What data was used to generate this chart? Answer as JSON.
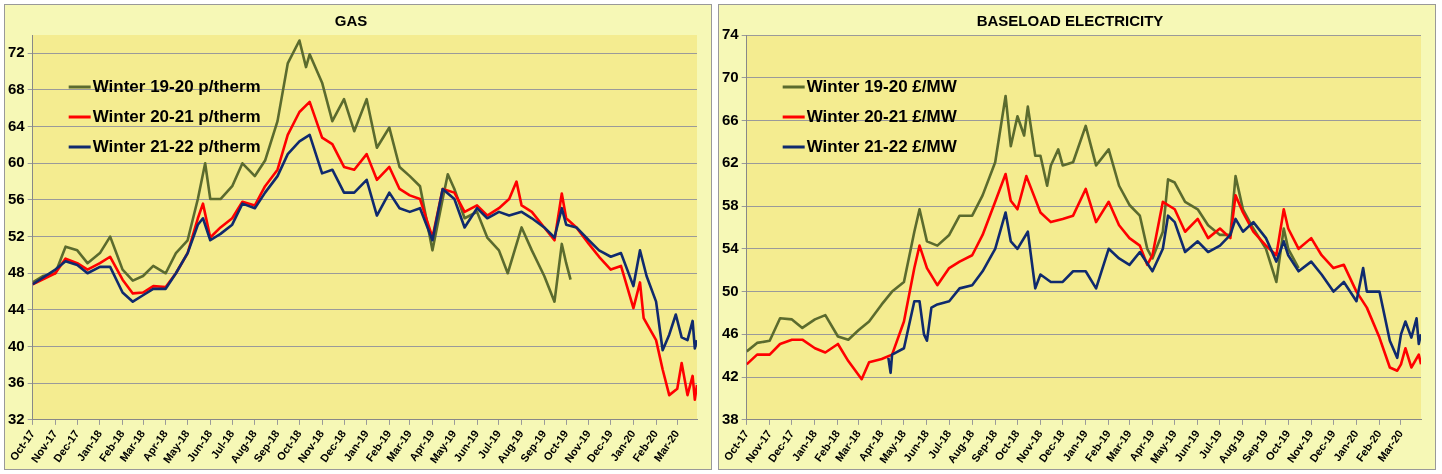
{
  "chart_data": [
    {
      "type": "line",
      "title": "GAS",
      "grid": "y",
      "legend": "top left",
      "marker": "none",
      "xlim": [
        "2017-10-01",
        "2020-03-28"
      ],
      "xticks": [
        {
          "value": "2017-10-01",
          "label": "Oct-17"
        },
        {
          "value": "2017-11-01",
          "label": "Nov-17"
        },
        {
          "value": "2017-12-01",
          "label": "Dec-17"
        },
        {
          "value": "2018-01-01",
          "label": "Jan-18"
        },
        {
          "value": "2018-02-01",
          "label": "Feb-18"
        },
        {
          "value": "2018-03-01",
          "label": "Mar-18"
        },
        {
          "value": "2018-04-01",
          "label": "Apr-18"
        },
        {
          "value": "2018-05-01",
          "label": "May-18"
        },
        {
          "value": "2018-06-01",
          "label": "Jun-18"
        },
        {
          "value": "2018-07-01",
          "label": "Jul-18"
        },
        {
          "value": "2018-08-01",
          "label": "Aug-18"
        },
        {
          "value": "2018-09-01",
          "label": "Sep-18"
        },
        {
          "value": "2018-10-01",
          "label": "Oct-18"
        },
        {
          "value": "2018-11-01",
          "label": "Nov-18"
        },
        {
          "value": "2018-12-01",
          "label": "Dec-18"
        },
        {
          "value": "2019-01-01",
          "label": "Jan-19"
        },
        {
          "value": "2019-02-01",
          "label": "Feb-19"
        },
        {
          "value": "2019-03-01",
          "label": "Mar-19"
        },
        {
          "value": "2019-04-01",
          "label": "Apr-19"
        },
        {
          "value": "2019-05-01",
          "label": "May-19"
        },
        {
          "value": "2019-06-01",
          "label": "Jun-19"
        },
        {
          "value": "2019-07-01",
          "label": "Jul-19"
        },
        {
          "value": "2019-08-01",
          "label": "Aug-19"
        },
        {
          "value": "2019-09-01",
          "label": "Sep-19"
        },
        {
          "value": "2019-10-01",
          "label": "Oct-19"
        },
        {
          "value": "2019-11-01",
          "label": "Nov-19"
        },
        {
          "value": "2019-12-01",
          "label": "Dec-19"
        },
        {
          "value": "2020-01-01",
          "label": "Jan-20"
        },
        {
          "value": "2020-02-01",
          "label": "Feb-20"
        },
        {
          "value": "2020-03-01",
          "label": "Mar-20"
        }
      ],
      "ylim": [
        32,
        74
      ],
      "yticks": [
        32,
        36,
        40,
        44,
        48,
        52,
        56,
        60,
        64,
        68,
        72
      ],
      "series": [
        {
          "name": "Winter 19-20 p/therm",
          "color": "#5b6b2e",
          "x": [
            "2017-10-01",
            "2017-10-15",
            "2017-11-01",
            "2017-11-15",
            "2017-12-01",
            "2017-12-15",
            "2018-01-01",
            "2018-01-15",
            "2018-02-01",
            "2018-02-15",
            "2018-03-01",
            "2018-03-15",
            "2018-04-01",
            "2018-04-15",
            "2018-05-01",
            "2018-05-15",
            "2018-05-25",
            "2018-06-01",
            "2018-06-15",
            "2018-07-01",
            "2018-07-15",
            "2018-08-01",
            "2018-08-15",
            "2018-09-01",
            "2018-09-15",
            "2018-10-01",
            "2018-10-10",
            "2018-10-15",
            "2018-11-01",
            "2018-11-15",
            "2018-12-01",
            "2018-12-15",
            "2019-01-01",
            "2019-01-15",
            "2019-02-01",
            "2019-02-15",
            "2019-03-01",
            "2019-03-15",
            "2019-04-01",
            "2019-04-15",
            "2019-04-22",
            "2019-05-01",
            "2019-05-15",
            "2019-06-01",
            "2019-06-15",
            "2019-07-01",
            "2019-07-13",
            "2019-08-01",
            "2019-08-15",
            "2019-09-01",
            "2019-09-15",
            "2019-09-25",
            "2019-10-01",
            "2019-10-07"
          ],
          "values": [
            47.0,
            47.7,
            48.0,
            50.9,
            50.5,
            49.1,
            50.2,
            52.0,
            48.4,
            47.2,
            47.7,
            48.8,
            48.0,
            50.2,
            51.6,
            56.1,
            60.0,
            56.1,
            56.1,
            57.5,
            60.0,
            58.6,
            60.3,
            64.6,
            70.9,
            73.4,
            70.5,
            71.9,
            68.8,
            64.6,
            67.0,
            63.5,
            67.0,
            61.7,
            63.9,
            59.6,
            58.6,
            57.5,
            50.5,
            56.1,
            58.8,
            57.2,
            54.0,
            54.7,
            51.9,
            50.5,
            48.0,
            53.0,
            50.5,
            47.7,
            44.9,
            51.2,
            49.1,
            47.3
          ]
        },
        {
          "name": "Winter 20-21 p/therm",
          "color": "#ff0000",
          "x": [
            "2017-10-01",
            "2017-11-01",
            "2017-11-15",
            "2017-12-01",
            "2017-12-15",
            "2018-01-01",
            "2018-01-15",
            "2018-02-01",
            "2018-02-15",
            "2018-03-01",
            "2018-03-15",
            "2018-04-01",
            "2018-04-15",
            "2018-05-01",
            "2018-05-15",
            "2018-05-22",
            "2018-06-01",
            "2018-06-15",
            "2018-07-01",
            "2018-07-15",
            "2018-08-01",
            "2018-08-15",
            "2018-09-01",
            "2018-09-15",
            "2018-10-01",
            "2018-10-15",
            "2018-11-01",
            "2018-11-15",
            "2018-12-01",
            "2018-12-15",
            "2019-01-01",
            "2019-01-15",
            "2019-02-01",
            "2019-02-15",
            "2019-03-01",
            "2019-03-15",
            "2019-04-01",
            "2019-04-15",
            "2019-05-01",
            "2019-05-15",
            "2019-06-01",
            "2019-06-15",
            "2019-07-01",
            "2019-07-15",
            "2019-07-25",
            "2019-08-01",
            "2019-08-15",
            "2019-09-01",
            "2019-09-15",
            "2019-09-25",
            "2019-10-01",
            "2019-10-15",
            "2019-11-01",
            "2019-11-15",
            "2019-12-01",
            "2019-12-15",
            "2020-01-01",
            "2020-01-10",
            "2020-01-15",
            "2020-02-01",
            "2020-02-10",
            "2020-02-19",
            "2020-03-01",
            "2020-03-07",
            "2020-03-15",
            "2020-03-22",
            "2020-03-25",
            "2020-03-28"
          ],
          "values": [
            46.8,
            48.0,
            49.6,
            49.1,
            48.4,
            49.1,
            49.8,
            47.3,
            45.8,
            45.9,
            46.6,
            46.5,
            48.0,
            50.2,
            54.0,
            55.6,
            51.9,
            53.0,
            54.0,
            55.8,
            55.4,
            57.5,
            59.3,
            63.1,
            65.6,
            66.7,
            62.8,
            62.1,
            59.6,
            59.3,
            61.0,
            58.2,
            59.6,
            57.2,
            56.5,
            56.1,
            51.9,
            57.2,
            56.8,
            54.7,
            55.4,
            54.3,
            55.1,
            56.1,
            58.0,
            55.4,
            54.7,
            53.0,
            51.6,
            56.7,
            54.0,
            53.0,
            51.2,
            49.8,
            48.4,
            48.8,
            44.2,
            47.0,
            43.1,
            40.7,
            37.5,
            34.7,
            35.4,
            38.2,
            34.7,
            36.8,
            34.2,
            35.8
          ]
        },
        {
          "name": "Winter 21-22 p/therm",
          "color": "#0f2a6e",
          "x": [
            "2017-10-01",
            "2017-11-01",
            "2017-11-15",
            "2017-12-01",
            "2017-12-15",
            "2018-01-01",
            "2018-01-15",
            "2018-02-01",
            "2018-02-15",
            "2018-03-01",
            "2018-03-15",
            "2018-04-01",
            "2018-04-15",
            "2018-05-01",
            "2018-05-15",
            "2018-05-22",
            "2018-06-01",
            "2018-06-15",
            "2018-07-01",
            "2018-07-15",
            "2018-08-01",
            "2018-08-15",
            "2018-09-01",
            "2018-09-15",
            "2018-10-01",
            "2018-10-15",
            "2018-11-01",
            "2018-11-15",
            "2018-12-01",
            "2018-12-15",
            "2019-01-01",
            "2019-01-15",
            "2019-02-01",
            "2019-02-15",
            "2019-03-01",
            "2019-03-15",
            "2019-04-01",
            "2019-04-15",
            "2019-05-01",
            "2019-05-15",
            "2019-06-01",
            "2019-06-15",
            "2019-07-01",
            "2019-07-15",
            "2019-08-01",
            "2019-08-15",
            "2019-09-01",
            "2019-09-15",
            "2019-09-25",
            "2019-10-01",
            "2019-10-15",
            "2019-11-01",
            "2019-11-15",
            "2019-12-01",
            "2019-12-15",
            "2020-01-01",
            "2020-01-10",
            "2020-01-19",
            "2020-02-01",
            "2020-02-10",
            "2020-02-19",
            "2020-02-28",
            "2020-03-07",
            "2020-03-15",
            "2020-03-22",
            "2020-03-25",
            "2020-03-28"
          ],
          "values": [
            46.8,
            48.4,
            49.3,
            48.9,
            48.0,
            48.7,
            48.7,
            45.9,
            44.9,
            45.6,
            46.3,
            46.3,
            48.0,
            50.2,
            53.3,
            54.0,
            51.6,
            52.3,
            53.3,
            55.6,
            55.1,
            56.8,
            58.6,
            61.0,
            62.4,
            63.1,
            58.9,
            59.3,
            56.8,
            56.8,
            58.2,
            54.3,
            56.8,
            55.1,
            54.7,
            55.1,
            51.6,
            57.2,
            56.1,
            53.0,
            55.1,
            54.0,
            54.7,
            54.3,
            54.7,
            54.0,
            53.0,
            51.9,
            55.1,
            53.3,
            53.0,
            51.6,
            50.5,
            49.8,
            50.2,
            46.6,
            50.5,
            47.7,
            44.9,
            39.6,
            41.3,
            43.5,
            41.0,
            40.7,
            42.8,
            39.8,
            40.7
          ]
        }
      ]
    },
    {
      "type": "line",
      "title": "BASELOAD ELECTRICITY",
      "grid": "y",
      "legend": "top left",
      "marker": "none",
      "xlim": [
        "2017-10-01",
        "2020-03-28"
      ],
      "xticks": [
        {
          "value": "2017-10-01",
          "label": "Oct-17"
        },
        {
          "value": "2017-11-01",
          "label": "Nov-17"
        },
        {
          "value": "2017-12-01",
          "label": "Dec-17"
        },
        {
          "value": "2018-01-01",
          "label": "Jan-18"
        },
        {
          "value": "2018-02-01",
          "label": "Feb-18"
        },
        {
          "value": "2018-03-01",
          "label": "Mar-18"
        },
        {
          "value": "2018-04-01",
          "label": "Apr-18"
        },
        {
          "value": "2018-05-01",
          "label": "May-18"
        },
        {
          "value": "2018-06-01",
          "label": "Jun-18"
        },
        {
          "value": "2018-07-01",
          "label": "Jul-18"
        },
        {
          "value": "2018-08-01",
          "label": "Aug-18"
        },
        {
          "value": "2018-09-01",
          "label": "Sep-18"
        },
        {
          "value": "2018-10-01",
          "label": "Oct-18"
        },
        {
          "value": "2018-11-01",
          "label": "Nov-18"
        },
        {
          "value": "2018-12-01",
          "label": "Dec-18"
        },
        {
          "value": "2019-01-01",
          "label": "Jan-19"
        },
        {
          "value": "2019-02-01",
          "label": "Feb-19"
        },
        {
          "value": "2019-03-01",
          "label": "Mar-19"
        },
        {
          "value": "2019-04-01",
          "label": "Apr-19"
        },
        {
          "value": "2019-05-01",
          "label": "May-19"
        },
        {
          "value": "2019-06-01",
          "label": "Jun-19"
        },
        {
          "value": "2019-07-01",
          "label": "Jul-19"
        },
        {
          "value": "2019-08-01",
          "label": "Aug-19"
        },
        {
          "value": "2019-09-01",
          "label": "Sep-19"
        },
        {
          "value": "2019-10-01",
          "label": "Oct-19"
        },
        {
          "value": "2019-11-01",
          "label": "Nov-19"
        },
        {
          "value": "2019-12-01",
          "label": "Dec-19"
        },
        {
          "value": "2020-01-01",
          "label": "Jan-20"
        },
        {
          "value": "2020-02-01",
          "label": "Feb-20"
        },
        {
          "value": "2020-03-01",
          "label": "Mar-20"
        }
      ],
      "ylim": [
        38,
        74
      ],
      "yticks": [
        38,
        42,
        46,
        50,
        54,
        58,
        62,
        66,
        70,
        74
      ],
      "series": [
        {
          "name": "Winter 19-20 £/MW",
          "color": "#5b6b2e",
          "x": [
            "2017-10-01",
            "2017-10-15",
            "2017-11-01",
            "2017-11-15",
            "2017-12-01",
            "2017-12-15",
            "2018-01-01",
            "2018-01-15",
            "2018-02-01",
            "2018-02-15",
            "2018-03-01",
            "2018-03-15",
            "2018-04-01",
            "2018-04-15",
            "2018-05-01",
            "2018-05-15",
            "2018-05-22",
            "2018-06-01",
            "2018-06-15",
            "2018-07-01",
            "2018-07-15",
            "2018-08-01",
            "2018-08-15",
            "2018-09-01",
            "2018-09-15",
            "2018-09-22",
            "2018-10-01",
            "2018-10-10",
            "2018-10-15",
            "2018-10-25",
            "2018-11-01",
            "2018-11-10",
            "2018-11-15",
            "2018-11-25",
            "2018-12-01",
            "2018-12-15",
            "2019-01-01",
            "2019-01-15",
            "2019-02-01",
            "2019-02-15",
            "2019-03-01",
            "2019-03-15",
            "2019-03-25",
            "2019-04-01",
            "2019-04-15",
            "2019-04-22",
            "2019-05-01",
            "2019-05-15",
            "2019-06-01",
            "2019-06-15",
            "2019-07-01",
            "2019-07-15",
            "2019-07-22",
            "2019-08-01",
            "2019-08-15",
            "2019-09-01",
            "2019-09-15",
            "2019-09-25",
            "2019-10-01",
            "2019-10-15"
          ],
          "values": [
            44.4,
            45.2,
            45.4,
            47.5,
            47.4,
            46.6,
            47.4,
            47.8,
            45.8,
            45.5,
            46.4,
            47.2,
            48.8,
            50.0,
            50.9,
            55.6,
            57.7,
            54.7,
            54.3,
            55.3,
            57.1,
            57.1,
            59.0,
            62.1,
            68.3,
            63.6,
            66.4,
            64.6,
            67.3,
            62.7,
            62.7,
            59.9,
            61.8,
            63.3,
            61.8,
            62.1,
            65.5,
            61.8,
            63.3,
            59.9,
            58.1,
            57.1,
            54.0,
            53.1,
            55.6,
            60.5,
            60.2,
            58.4,
            57.7,
            56.2,
            55.3,
            55.3,
            60.8,
            57.7,
            55.9,
            54.0,
            50.9,
            55.9,
            54.0,
            52.2
          ]
        },
        {
          "name": "Winter 20-21 £/MW",
          "color": "#ff0000",
          "x": [
            "2017-10-01",
            "2017-10-15",
            "2017-11-01",
            "2017-11-15",
            "2017-12-01",
            "2017-12-15",
            "2018-01-01",
            "2018-01-15",
            "2018-02-01",
            "2018-02-15",
            "2018-03-05",
            "2018-03-15",
            "2018-04-01",
            "2018-04-15",
            "2018-05-01",
            "2018-05-15",
            "2018-05-22",
            "2018-06-01",
            "2018-06-15",
            "2018-07-01",
            "2018-07-15",
            "2018-08-01",
            "2018-08-15",
            "2018-09-01",
            "2018-09-15",
            "2018-09-22",
            "2018-10-01",
            "2018-10-13",
            "2018-11-01",
            "2018-11-15",
            "2018-12-01",
            "2018-12-15",
            "2019-01-01",
            "2019-01-15",
            "2019-02-01",
            "2019-02-15",
            "2019-03-01",
            "2019-03-15",
            "2019-03-25",
            "2019-04-01",
            "2019-04-15",
            "2019-05-01",
            "2019-05-15",
            "2019-06-01",
            "2019-06-15",
            "2019-07-01",
            "2019-07-15",
            "2019-07-22",
            "2019-08-01",
            "2019-08-15",
            "2019-09-01",
            "2019-09-15",
            "2019-09-25",
            "2019-10-01",
            "2019-10-15",
            "2019-11-01",
            "2019-11-15",
            "2019-12-01",
            "2019-12-15",
            "2020-01-01",
            "2020-01-15",
            "2020-02-01",
            "2020-02-15",
            "2020-02-25",
            "2020-03-01",
            "2020-03-07",
            "2020-03-15",
            "2020-03-25",
            "2020-03-28"
          ],
          "values": [
            43.2,
            44.1,
            44.1,
            45.1,
            45.5,
            45.5,
            44.7,
            44.3,
            45.1,
            43.5,
            41.8,
            43.4,
            43.7,
            44.1,
            47.2,
            52.2,
            54.3,
            52.2,
            50.6,
            52.2,
            52.8,
            53.4,
            55.3,
            58.4,
            61.0,
            58.5,
            57.7,
            60.8,
            57.4,
            56.5,
            56.8,
            57.1,
            59.6,
            56.5,
            58.4,
            56.2,
            55.0,
            54.3,
            52.5,
            53.4,
            58.4,
            57.7,
            55.6,
            56.8,
            55.0,
            55.9,
            55.0,
            59.0,
            57.4,
            55.6,
            54.3,
            53.4,
            57.7,
            55.9,
            54.0,
            55.0,
            53.4,
            52.2,
            52.5,
            50.0,
            48.5,
            45.7,
            42.9,
            42.6,
            43.2,
            44.7,
            42.9,
            44.1,
            43.2
          ]
        },
        {
          "name": "Winter 21-22 £/MW",
          "color": "#0f2a6e",
          "x": [
            "2018-04-10",
            "2018-04-13",
            "2018-04-15",
            "2018-05-01",
            "2018-05-15",
            "2018-05-22",
            "2018-05-28",
            "2018-06-01",
            "2018-06-07",
            "2018-06-15",
            "2018-07-01",
            "2018-07-15",
            "2018-08-01",
            "2018-08-15",
            "2018-09-01",
            "2018-09-15",
            "2018-09-22",
            "2018-10-01",
            "2018-10-15",
            "2018-10-25",
            "2018-11-01",
            "2018-11-15",
            "2018-12-01",
            "2018-12-15",
            "2019-01-01",
            "2019-01-15",
            "2019-02-01",
            "2019-02-15",
            "2019-03-01",
            "2019-03-15",
            "2019-04-01",
            "2019-04-15",
            "2019-04-22",
            "2019-05-01",
            "2019-05-15",
            "2019-06-01",
            "2019-06-15",
            "2019-07-01",
            "2019-07-15",
            "2019-07-22",
            "2019-08-01",
            "2019-08-15",
            "2019-09-01",
            "2019-09-15",
            "2019-09-25",
            "2019-10-01",
            "2019-10-15",
            "2019-11-01",
            "2019-11-15",
            "2019-12-01",
            "2019-12-15",
            "2020-01-01",
            "2020-01-10",
            "2020-01-15",
            "2020-02-01",
            "2020-02-15",
            "2020-02-25",
            "2020-03-01",
            "2020-03-07",
            "2020-03-15",
            "2020-03-22",
            "2020-03-25",
            "2020-03-28"
          ],
          "values": [
            43.8,
            42.4,
            44.1,
            44.7,
            49.1,
            49.1,
            46.0,
            45.4,
            48.5,
            48.8,
            49.1,
            50.3,
            50.6,
            51.9,
            54.0,
            57.4,
            54.7,
            54.0,
            55.6,
            50.3,
            51.6,
            50.9,
            50.9,
            51.9,
            51.9,
            50.3,
            54.0,
            53.1,
            52.5,
            53.7,
            51.9,
            54.0,
            57.1,
            56.5,
            53.7,
            54.7,
            53.7,
            54.3,
            55.3,
            56.8,
            55.6,
            56.5,
            55.0,
            52.8,
            54.7,
            53.4,
            51.9,
            52.8,
            51.6,
            50.0,
            50.9,
            49.1,
            52.2,
            50.0,
            50.0,
            45.4,
            43.8,
            46.0,
            47.2,
            45.7,
            47.5,
            45.1,
            46.0
          ]
        }
      ]
    }
  ]
}
